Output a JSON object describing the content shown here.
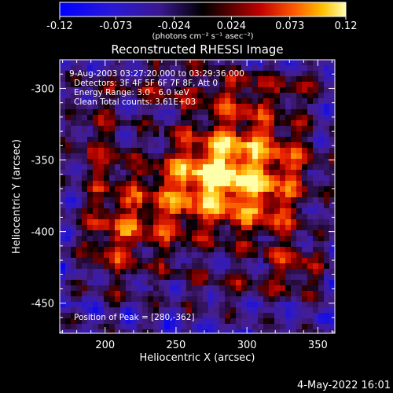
{
  "chart_data": {
    "type": "heatmap",
    "title": "Reconstructed RHESSI Image",
    "xlabel": "Heliocentric X (arcsec)",
    "ylabel": "Heliocentric Y (arcsec)",
    "xlim": [
      168,
      362
    ],
    "ylim": [
      -471,
      -280
    ],
    "x_ticks": [
      200,
      250,
      300,
      350
    ],
    "y_ticks": [
      -300,
      -350,
      -400,
      -450
    ],
    "grid": false,
    "colorbar": {
      "location": "top",
      "range": [
        -0.12,
        0.12
      ],
      "ticks": [
        "-0.12",
        "-0.073",
        "-0.024",
        "0.024",
        "0.073",
        "0.12"
      ],
      "units_label": "(photons cm⁻² s⁻¹ asec⁻²)"
    },
    "annotations": {
      "time_range": "9-Aug-2003 03:27:20.000 to 03:29:36.000",
      "detectors": "Detectors: 3F 4F 5F 6F 7F 8F, Att 0",
      "energy": "Energy Range: 3.0 - 6.0 keV",
      "clean": "Clean    Total counts: 3.61E+03",
      "peak": "Position of Peak = [280,-362]"
    },
    "peak_position": [
      280,
      -362
    ],
    "peak_value": 0.12
  },
  "footer": {
    "timestamp": "4-May-2022 16:01"
  }
}
